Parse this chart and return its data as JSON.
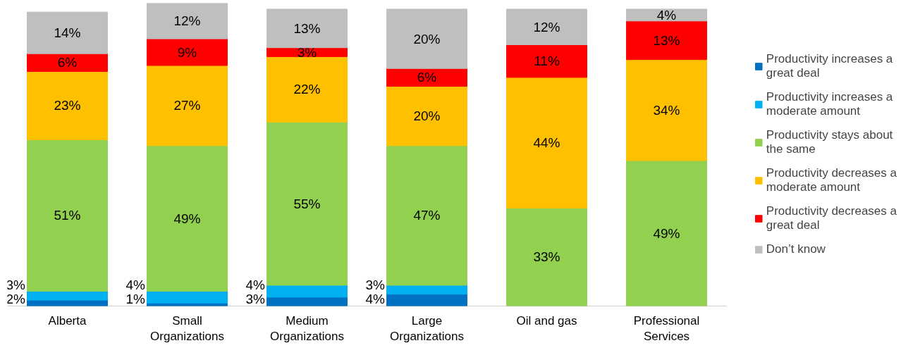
{
  "chart_data": {
    "type": "bar",
    "stacked": true,
    "grid": false,
    "legend": "right",
    "data_labels": true,
    "categories": [
      "Alberta",
      "Small\nOrganizations",
      "Medium\nOrganizations",
      "Large\nOrganizations",
      "Oil and gas",
      "Professional\nServices"
    ],
    "series": [
      {
        "name": "Productivity increases a great deal",
        "color": "#0070c0",
        "values": [
          2,
          1,
          3,
          4,
          null,
          null
        ],
        "value_labels": [
          "2%",
          "1%",
          "3%",
          "4%",
          null,
          null
        ]
      },
      {
        "name": "Productivity increases a moderate amount",
        "color": "#00b0f0",
        "values": [
          3,
          4,
          4,
          3,
          null,
          null
        ],
        "value_labels": [
          "3%",
          "4%",
          "4%",
          "3%",
          null,
          null
        ]
      },
      {
        "name": "Productivity stays about the same",
        "color": "#92d050",
        "values": [
          51,
          49,
          55,
          47,
          33,
          49
        ],
        "value_labels": [
          "51%",
          "49%",
          "55%",
          "47%",
          "33%",
          "49%"
        ]
      },
      {
        "name": "Productivity decreases a moderate amount",
        "color": "#ffc000",
        "values": [
          23,
          27,
          22,
          20,
          44,
          34
        ],
        "value_labels": [
          "23%",
          "27%",
          "22%",
          "20%",
          "44%",
          "34%"
        ]
      },
      {
        "name": "Productivity decreases a great deal",
        "color": "#ff0000",
        "values": [
          6,
          9,
          3,
          6,
          11,
          13
        ],
        "value_labels": [
          "6%",
          "9%",
          "3%",
          "6%",
          "11%",
          "13%"
        ]
      },
      {
        "name": "Don’t know",
        "color": "#bfbfbf",
        "values": [
          14,
          12,
          13,
          20,
          12,
          4
        ],
        "value_labels": [
          "14%",
          "12%",
          "13%",
          "20%",
          "12%",
          "4%"
        ]
      }
    ]
  }
}
